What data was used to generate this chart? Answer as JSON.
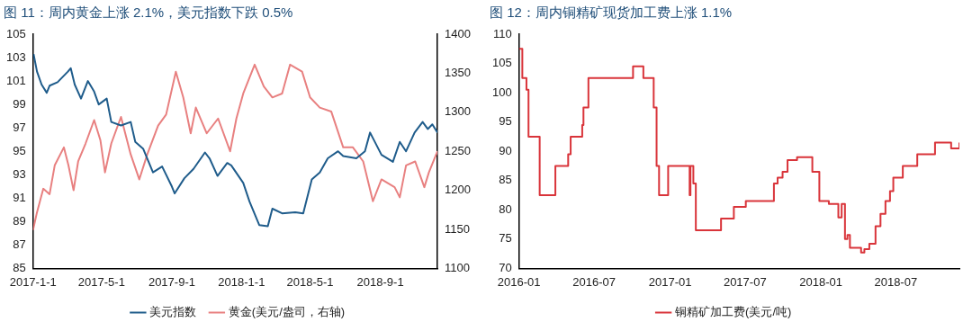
{
  "chart_data": [
    {
      "type": "line",
      "title": "图 11：周内黄金上涨 2.1%，美元指数下跌 0.5%",
      "legend": "bottom",
      "marker": "none",
      "xlim": [
        "2017-01-01",
        "2018-12-10"
      ],
      "xticks": [
        {
          "value": "2017-01-01",
          "label": "2017-1-1"
        },
        {
          "value": "2017-05-01",
          "label": "2017-5-1"
        },
        {
          "value": "2017-09-01",
          "label": "2017-9-1"
        },
        {
          "value": "2018-01-01",
          "label": "2018-1-1"
        },
        {
          "value": "2018-05-01",
          "label": "2018-5-1"
        },
        {
          "value": "2018-09-01",
          "label": "2018-9-1"
        }
      ],
      "ylim": [
        85,
        105
      ],
      "yticks": [
        85,
        87,
        89,
        91,
        93,
        95,
        97,
        99,
        101,
        103,
        105
      ],
      "y2lim": [
        1100,
        1400
      ],
      "y2ticks": [
        1100,
        1150,
        1200,
        1250,
        1300,
        1350,
        1400
      ],
      "series": [
        {
          "name": "美元指数",
          "color": "#1f5c8b",
          "x": [
            "2017-01-02",
            "2017-01-08",
            "2017-01-16",
            "2017-01-25",
            "2017-01-30",
            "2017-02-13",
            "2017-03-03",
            "2017-03-08",
            "2017-03-15",
            "2017-03-26",
            "2017-04-07",
            "2017-04-18",
            "2017-04-26",
            "2017-05-10",
            "2017-05-18",
            "2017-06-04",
            "2017-06-21",
            "2017-06-29",
            "2017-07-13",
            "2017-07-30",
            "2017-08-15",
            "2017-09-01",
            "2017-09-06",
            "2017-09-23",
            "2017-10-09",
            "2017-10-29",
            "2017-11-06",
            "2017-11-20",
            "2017-12-07",
            "2017-12-14",
            "2018-01-04",
            "2018-01-15",
            "2018-02-01",
            "2018-02-16",
            "2018-02-24",
            "2018-03-13",
            "2018-04-05",
            "2018-04-19",
            "2018-05-04",
            "2018-05-18",
            "2018-06-01",
            "2018-06-19",
            "2018-06-28",
            "2018-07-21",
            "2018-08-05",
            "2018-08-14",
            "2018-09-03",
            "2018-09-23",
            "2018-10-05",
            "2018-10-16",
            "2018-10-31",
            "2018-11-14",
            "2018-11-23",
            "2018-12-01",
            "2018-12-10"
          ],
          "values": [
            103.3,
            101.8,
            100.7,
            100.0,
            100.6,
            100.9,
            101.8,
            102.1,
            100.7,
            99.5,
            101.0,
            100.1,
            99.0,
            99.5,
            97.5,
            97.2,
            97.5,
            95.8,
            95.2,
            93.2,
            93.7,
            92.0,
            91.4,
            92.7,
            93.5,
            94.9,
            94.4,
            92.9,
            94.0,
            93.8,
            92.3,
            90.7,
            88.7,
            88.6,
            90.1,
            89.7,
            89.8,
            89.7,
            92.6,
            93.2,
            94.4,
            95.0,
            94.6,
            94.4,
            95.0,
            96.6,
            94.7,
            94.1,
            95.8,
            95.0,
            96.6,
            97.5,
            96.9,
            97.3,
            96.6
          ]
        },
        {
          "name": "黄金(美元/盎司，右轴)",
          "color": "#e88080",
          "axis": "y2",
          "x": [
            "2017-01-01",
            "2017-01-08",
            "2017-01-19",
            "2017-01-30",
            "2017-02-08",
            "2017-02-24",
            "2017-03-04",
            "2017-03-13",
            "2017-03-21",
            "2017-04-03",
            "2017-04-18",
            "2017-04-29",
            "2017-05-07",
            "2017-05-18",
            "2017-06-04",
            "2017-06-21",
            "2017-07-06",
            "2017-07-20",
            "2017-08-08",
            "2017-08-22",
            "2017-09-08",
            "2017-09-21",
            "2017-10-04",
            "2017-10-13",
            "2017-11-01",
            "2017-11-21",
            "2017-12-12",
            "2017-12-23",
            "2018-01-04",
            "2018-01-24",
            "2018-02-09",
            "2018-02-24",
            "2018-03-13",
            "2018-03-27",
            "2018-04-17",
            "2018-05-01",
            "2018-05-18",
            "2018-06-07",
            "2018-06-28",
            "2018-07-15",
            "2018-08-02",
            "2018-08-19",
            "2018-09-03",
            "2018-09-26",
            "2018-10-05",
            "2018-10-16",
            "2018-11-01",
            "2018-11-17",
            "2018-11-25",
            "2018-12-10"
          ],
          "values": [
            1149,
            1172,
            1202,
            1195,
            1232,
            1255,
            1232,
            1200,
            1237,
            1260,
            1290,
            1264,
            1223,
            1260,
            1294,
            1246,
            1214,
            1246,
            1283,
            1297,
            1352,
            1319,
            1273,
            1306,
            1273,
            1292,
            1250,
            1292,
            1324,
            1361,
            1333,
            1319,
            1324,
            1361,
            1352,
            1319,
            1306,
            1301,
            1255,
            1255,
            1237,
            1186,
            1214,
            1204,
            1191,
            1232,
            1237,
            1204,
            1223,
            1250
          ]
        }
      ]
    },
    {
      "type": "step",
      "title": "图 12：周内铜精矿现货加工费上涨 1.1%",
      "legend": "bottom",
      "marker": "none",
      "xlim": [
        "2016-01-01",
        "2018-12-02"
      ],
      "xticks": [
        {
          "value": "2016-01",
          "label": "2016-01"
        },
        {
          "value": "2016-07",
          "label": "2016-07"
        },
        {
          "value": "2017-01",
          "label": "2017-01"
        },
        {
          "value": "2017-07",
          "label": "2017-07"
        },
        {
          "value": "2018-01",
          "label": "2018-01"
        },
        {
          "value": "2018-07",
          "label": "2018-07"
        }
      ],
      "ylim": [
        70,
        110
      ],
      "yticks": [
        70,
        75,
        80,
        85,
        90,
        95,
        100,
        105,
        110
      ],
      "x": [
        "2016-01-01",
        "2016-01-09",
        "2016-01-19",
        "2016-01-24",
        "2016-02-20",
        "2016-03-29",
        "2016-04-29",
        "2016-05-05",
        "2016-06-02",
        "2016-06-05",
        "2016-06-17",
        "2016-10-03",
        "2016-10-28",
        "2016-11-22",
        "2016-11-29",
        "2016-12-05",
        "2016-12-27",
        "2017-02-17",
        "2017-02-19",
        "2017-02-26",
        "2017-03-04",
        "2017-05-04",
        "2017-06-04",
        "2017-07-03",
        "2017-09-09",
        "2017-09-18",
        "2017-09-30",
        "2017-10-12",
        "2017-11-04",
        "2017-12-11",
        "2017-12-28",
        "2018-01-20",
        "2018-02-12",
        "2018-02-20",
        "2018-02-28",
        "2018-03-06",
        "2018-03-12",
        "2018-04-08",
        "2018-04-16",
        "2018-04-28",
        "2018-05-13",
        "2018-05-25",
        "2018-06-06",
        "2018-06-17",
        "2018-06-25",
        "2018-07-18",
        "2018-08-22",
        "2018-10-04",
        "2018-11-12",
        "2018-12-02"
      ],
      "series": [
        {
          "name": "铜精矿加工费(美元/吨)",
          "color": "#d9343a",
          "values": [
            107.5,
            102.5,
            100.5,
            92.5,
            82.5,
            87.5,
            89.5,
            92.5,
            94.5,
            97.5,
            102.5,
            104.5,
            102.5,
            97.5,
            87.5,
            82.5,
            87.5,
            82.5,
            87.5,
            84.5,
            76.5,
            78.5,
            80.5,
            81.5,
            84.5,
            85.5,
            86.5,
            88.5,
            89,
            86.5,
            81.5,
            81,
            78.7,
            81,
            75,
            75.7,
            73.5,
            72.7,
            73.3,
            74.2,
            77.2,
            79.3,
            81.5,
            83.2,
            85.5,
            87.5,
            89.5,
            91.5,
            90.5,
            91.5
          ]
        }
      ]
    }
  ]
}
